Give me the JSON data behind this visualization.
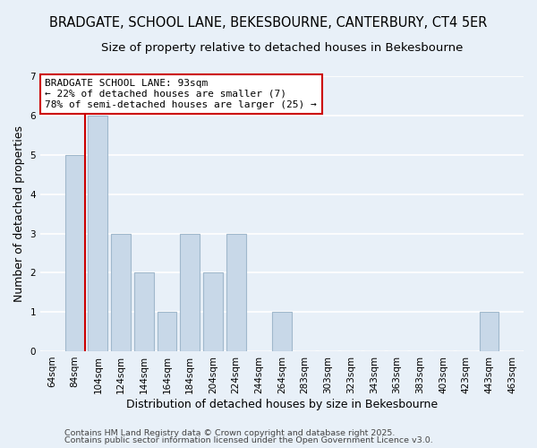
{
  "title": "BRADGATE, SCHOOL LANE, BEKESBOURNE, CANTERBURY, CT4 5ER",
  "subtitle": "Size of property relative to detached houses in Bekesbourne",
  "xlabel": "Distribution of detached houses by size in Bekesbourne",
  "ylabel": "Number of detached properties",
  "categories": [
    "64sqm",
    "84sqm",
    "104sqm",
    "124sqm",
    "144sqm",
    "164sqm",
    "184sqm",
    "204sqm",
    "224sqm",
    "244sqm",
    "264sqm",
    "283sqm",
    "303sqm",
    "323sqm",
    "343sqm",
    "363sqm",
    "383sqm",
    "403sqm",
    "423sqm",
    "443sqm",
    "463sqm"
  ],
  "values": [
    0,
    5,
    6,
    3,
    2,
    1,
    3,
    2,
    3,
    0,
    1,
    0,
    0,
    0,
    0,
    0,
    0,
    0,
    0,
    1,
    0
  ],
  "bar_color": "#c8d8e8",
  "bar_edge_color": "#a0b8cc",
  "background_color": "#e8f0f8",
  "grid_color": "#ffffff",
  "annotation_text": "BRADGATE SCHOOL LANE: 93sqm\n← 22% of detached houses are smaller (7)\n78% of semi-detached houses are larger (25) →",
  "annotation_box_color": "#ffffff",
  "annotation_box_edge": "#cc0000",
  "red_line_color": "#cc0000",
  "ylim": [
    0,
    7
  ],
  "yticks": [
    0,
    1,
    2,
    3,
    4,
    5,
    6,
    7
  ],
  "footer1": "Contains HM Land Registry data © Crown copyright and database right 2025.",
  "footer2": "Contains public sector information licensed under the Open Government Licence v3.0.",
  "title_fontsize": 10.5,
  "subtitle_fontsize": 9.5,
  "axis_label_fontsize": 9,
  "tick_fontsize": 7.5,
  "annotation_fontsize": 8.0,
  "footer_fontsize": 6.8
}
